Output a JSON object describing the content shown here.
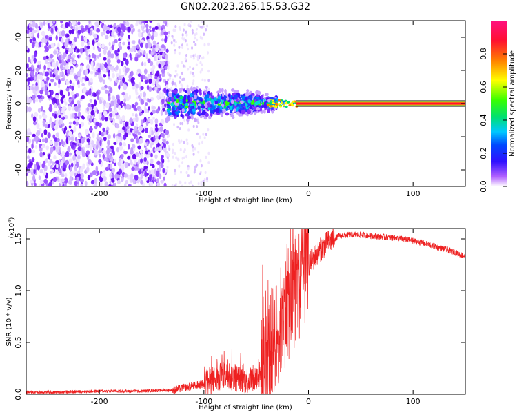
{
  "title": "GN02.2023.265.15.53.G32",
  "spectrogram": {
    "type": "heatmap",
    "xlabel": "Height of straight line (km)",
    "ylabel": "Frequency (Hz)",
    "xlim": [
      -270,
      150
    ],
    "ylim": [
      -50,
      50
    ],
    "xticks": [
      -200,
      -100,
      0,
      100
    ],
    "yticks": [
      -40,
      -20,
      0,
      20,
      40
    ],
    "noise_region_km": [
      -270,
      -135
    ],
    "cluster_region_km": [
      -135,
      -30
    ],
    "line_start_km": -12,
    "line_frequency_hz": 0
  },
  "colorbar": {
    "label": "Normalized spectral amplitude",
    "ticks": [
      "0.0",
      "0.2",
      "0.4",
      "0.6",
      "0.8"
    ],
    "range": [
      0,
      1
    ],
    "colors": [
      "#ffffff",
      "#b060ff",
      "#3010ff",
      "#00c8ff",
      "#00e070",
      "#38ff00",
      "#ffff00",
      "#ff8000",
      "#ff1030",
      "#ff1080"
    ]
  },
  "chart_data": {
    "type": "line",
    "xlabel": "Height of straight line (km)",
    "ylabel": "SNR (10 * v/v)",
    "scale_label": "(x10",
    "scale_exp": "4",
    "ylabel_full": "SNR (10 * v/v) (x10^4)",
    "xlim": [
      -270,
      150
    ],
    "ylim": [
      0,
      1.6
    ],
    "xticks": [
      -200,
      -100,
      0,
      100
    ],
    "yticks": [
      0.0,
      0.5,
      1.0,
      1.5
    ],
    "ytick_labels": [
      "0.0",
      "0.5",
      "1.0",
      "1.5"
    ],
    "line_color": "#ee2020",
    "series": [
      {
        "x": [
          -270,
          -240,
          -200,
          -160,
          -130,
          -120,
          -110,
          -100,
          -90,
          -80,
          -70,
          -60,
          -50,
          -45,
          -40,
          -35,
          -30,
          -25,
          -20,
          -15,
          -10,
          -5,
          0,
          10,
          20,
          30,
          40,
          50,
          60,
          70,
          80,
          90,
          100,
          110,
          120,
          130,
          140,
          150
        ],
        "y": [
          0.02,
          0.02,
          0.03,
          0.03,
          0.04,
          0.06,
          0.08,
          0.1,
          0.14,
          0.18,
          0.16,
          0.14,
          0.15,
          0.2,
          0.3,
          0.5,
          0.58,
          0.75,
          0.85,
          0.95,
          1.05,
          1.15,
          1.25,
          1.38,
          1.48,
          1.53,
          1.54,
          1.54,
          1.53,
          1.52,
          1.51,
          1.5,
          1.48,
          1.46,
          1.43,
          1.4,
          1.37,
          1.33
        ]
      }
    ]
  }
}
